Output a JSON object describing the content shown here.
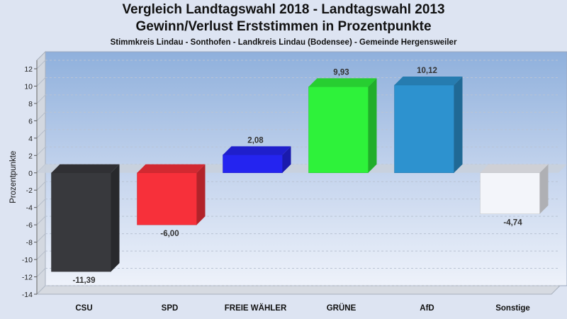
{
  "header": {
    "title_line1": "Vergleich Landtagswahl 2018 - Landtagswahl 2013",
    "title_line2": "Gewinn/Verlust Erststimmen in Prozentpunkte",
    "subtitle": "Stimmkreis Lindau - Sonthofen - Landkreis Lindau (Bodensee) - Gemeinde Hergensweiler"
  },
  "chart_data": {
    "type": "bar",
    "title": "Vergleich Landtagswahl 2018 - Landtagswahl 2013 / Gewinn/Verlust Erststimmen in Prozentpunkte",
    "subtitle": "Stimmkreis Lindau - Sonthofen - Landkreis Lindau (Bodensee) - Gemeinde Hergensweiler",
    "ylabel": "Prozentpunkte",
    "xlabel": "",
    "ylim": [
      -14,
      12
    ],
    "yticks": [
      12,
      10,
      8,
      6,
      4,
      2,
      0,
      -2,
      -4,
      -6,
      -8,
      -10,
      -12,
      -14
    ],
    "grid": true,
    "categories": [
      "CSU",
      "SPD",
      "FREIE WÄHLER",
      "GRÜNE",
      "AfD",
      "Sonstige"
    ],
    "values": [
      -11.39,
      -6.0,
      2.08,
      9.93,
      10.12,
      -4.74
    ],
    "labels": [
      "-11,39",
      "-6,00",
      "2,08",
      "9,93",
      "10,12",
      "-4,74"
    ],
    "colors": [
      "#38393d",
      "#f7303a",
      "#2424f0",
      "#2ef23a",
      "#2d92cf",
      "#f3f5fa"
    ]
  }
}
